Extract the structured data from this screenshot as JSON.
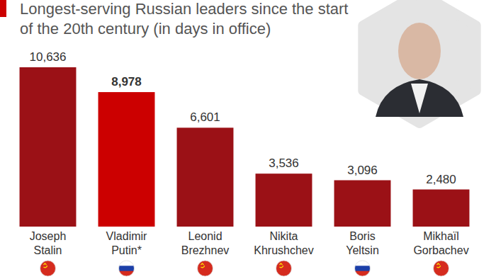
{
  "chart_data": {
    "type": "bar",
    "title": "Longest-serving Russian leaders since the start of the 20th century (in days in office)",
    "categories": [
      "Joseph Stalin",
      "Vladimir Putin*",
      "Leonid Brezhnev",
      "Nikita Khrushchev",
      "Boris Yeltsin",
      "Mikhaïl Gorbachev"
    ],
    "values": [
      10636,
      8978,
      6601,
      3536,
      3096,
      2480
    ],
    "value_labels": [
      "10,636",
      "8,978",
      "6,601",
      "3,536",
      "3,096",
      "2,480"
    ],
    "colors": [
      "#9b1116",
      "#cc0000",
      "#9b1116",
      "#9b1116",
      "#9b1116",
      "#9b1116"
    ],
    "data_labels": true,
    "tick_labels": false
  }
}
